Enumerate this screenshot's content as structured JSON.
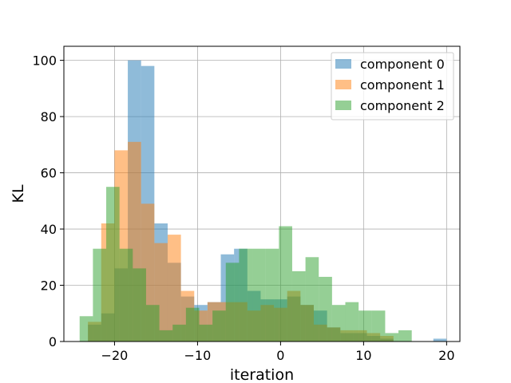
{
  "chart_data": {
    "type": "histogram",
    "xlabel": "iteration",
    "ylabel": "KL",
    "xlim": [
      -26.1,
      21.6
    ],
    "ylim": [
      0,
      105
    ],
    "xticks": [
      -20,
      -10,
      0,
      10,
      20
    ],
    "yticks": [
      0,
      20,
      40,
      60,
      80,
      100
    ],
    "xtick_labels": [
      "−20",
      "−10",
      "0",
      "10",
      "20"
    ],
    "ytick_labels": [
      "0",
      "20",
      "40",
      "60",
      "80",
      "100"
    ],
    "grid": true,
    "legend_position": "top-right",
    "alpha": 0.5,
    "series": [
      {
        "name": "component 0",
        "color": "#1f77b4",
        "bins": [
          [
            -23.2,
            -21.6,
            6
          ],
          [
            -21.6,
            -20.0,
            10
          ],
          [
            -20.0,
            -18.4,
            26
          ],
          [
            -18.4,
            -16.8,
            100
          ],
          [
            -16.8,
            -15.2,
            98
          ],
          [
            -15.2,
            -13.6,
            42
          ],
          [
            -13.6,
            -12.0,
            28
          ],
          [
            -12.0,
            -10.4,
            16
          ],
          [
            -10.4,
            -8.8,
            13
          ],
          [
            -8.8,
            -7.2,
            14
          ],
          [
            -7.2,
            -5.6,
            31
          ],
          [
            -5.6,
            -4.0,
            33
          ],
          [
            -4.0,
            -2.4,
            18
          ],
          [
            -2.4,
            -0.8,
            15
          ],
          [
            -0.8,
            0.8,
            15
          ],
          [
            0.8,
            2.4,
            16
          ],
          [
            2.4,
            4.0,
            13
          ],
          [
            4.0,
            5.6,
            11
          ],
          [
            5.6,
            7.2,
            5
          ],
          [
            7.2,
            8.8,
            3
          ],
          [
            8.8,
            10.4,
            3
          ],
          [
            10.4,
            12.0,
            2
          ],
          [
            12.0,
            13.6,
            1
          ],
          [
            13.6,
            15.2,
            0
          ],
          [
            15.2,
            16.8,
            0
          ],
          [
            16.8,
            18.4,
            0
          ],
          [
            18.4,
            20.0,
            1
          ]
        ]
      },
      {
        "name": "component 1",
        "color": "#ff7f0e",
        "bins": [
          [
            -23.2,
            -21.6,
            7
          ],
          [
            -21.6,
            -20.0,
            42
          ],
          [
            -20.0,
            -18.4,
            68
          ],
          [
            -18.4,
            -16.8,
            71
          ],
          [
            -16.8,
            -15.2,
            49
          ],
          [
            -15.2,
            -13.6,
            35
          ],
          [
            -13.6,
            -12.0,
            38
          ],
          [
            -12.0,
            -10.4,
            18
          ],
          [
            -10.4,
            -8.8,
            11
          ],
          [
            -8.8,
            -7.2,
            14
          ],
          [
            -7.2,
            -5.6,
            14
          ],
          [
            -5.6,
            -4.0,
            14
          ],
          [
            -4.0,
            -2.4,
            11
          ],
          [
            -2.4,
            -0.8,
            13
          ],
          [
            -0.8,
            0.8,
            12
          ],
          [
            0.8,
            2.4,
            18
          ],
          [
            2.4,
            4.0,
            13
          ],
          [
            4.0,
            5.6,
            6
          ],
          [
            5.6,
            7.2,
            5
          ],
          [
            7.2,
            8.8,
            4
          ],
          [
            8.8,
            10.4,
            4
          ],
          [
            10.4,
            12.0,
            3
          ],
          [
            12.0,
            13.6,
            2
          ]
        ]
      },
      {
        "name": "component 2",
        "color": "#2ca02c",
        "bins": [
          [
            -24.2,
            -22.6,
            9
          ],
          [
            -22.6,
            -21.0,
            33
          ],
          [
            -21.0,
            -19.4,
            55
          ],
          [
            -19.4,
            -17.8,
            33
          ],
          [
            -17.8,
            -16.2,
            26
          ],
          [
            -16.2,
            -14.6,
            13
          ],
          [
            -14.6,
            -13.0,
            4
          ],
          [
            -13.0,
            -11.4,
            6
          ],
          [
            -11.4,
            -9.8,
            12
          ],
          [
            -9.8,
            -8.2,
            6
          ],
          [
            -8.2,
            -6.6,
            11
          ],
          [
            -6.6,
            -5.0,
            28
          ],
          [
            -5.0,
            -3.4,
            33
          ],
          [
            -3.4,
            -1.8,
            33
          ],
          [
            -1.8,
            -0.2,
            33
          ],
          [
            -0.2,
            1.4,
            41
          ],
          [
            1.4,
            3.0,
            25
          ],
          [
            3.0,
            4.6,
            30
          ],
          [
            4.6,
            6.2,
            23
          ],
          [
            6.2,
            7.8,
            13
          ],
          [
            7.8,
            9.4,
            14
          ],
          [
            9.4,
            11.0,
            11
          ],
          [
            11.0,
            12.6,
            11
          ],
          [
            12.6,
            14.2,
            3
          ],
          [
            14.2,
            15.8,
            4
          ]
        ]
      }
    ]
  }
}
